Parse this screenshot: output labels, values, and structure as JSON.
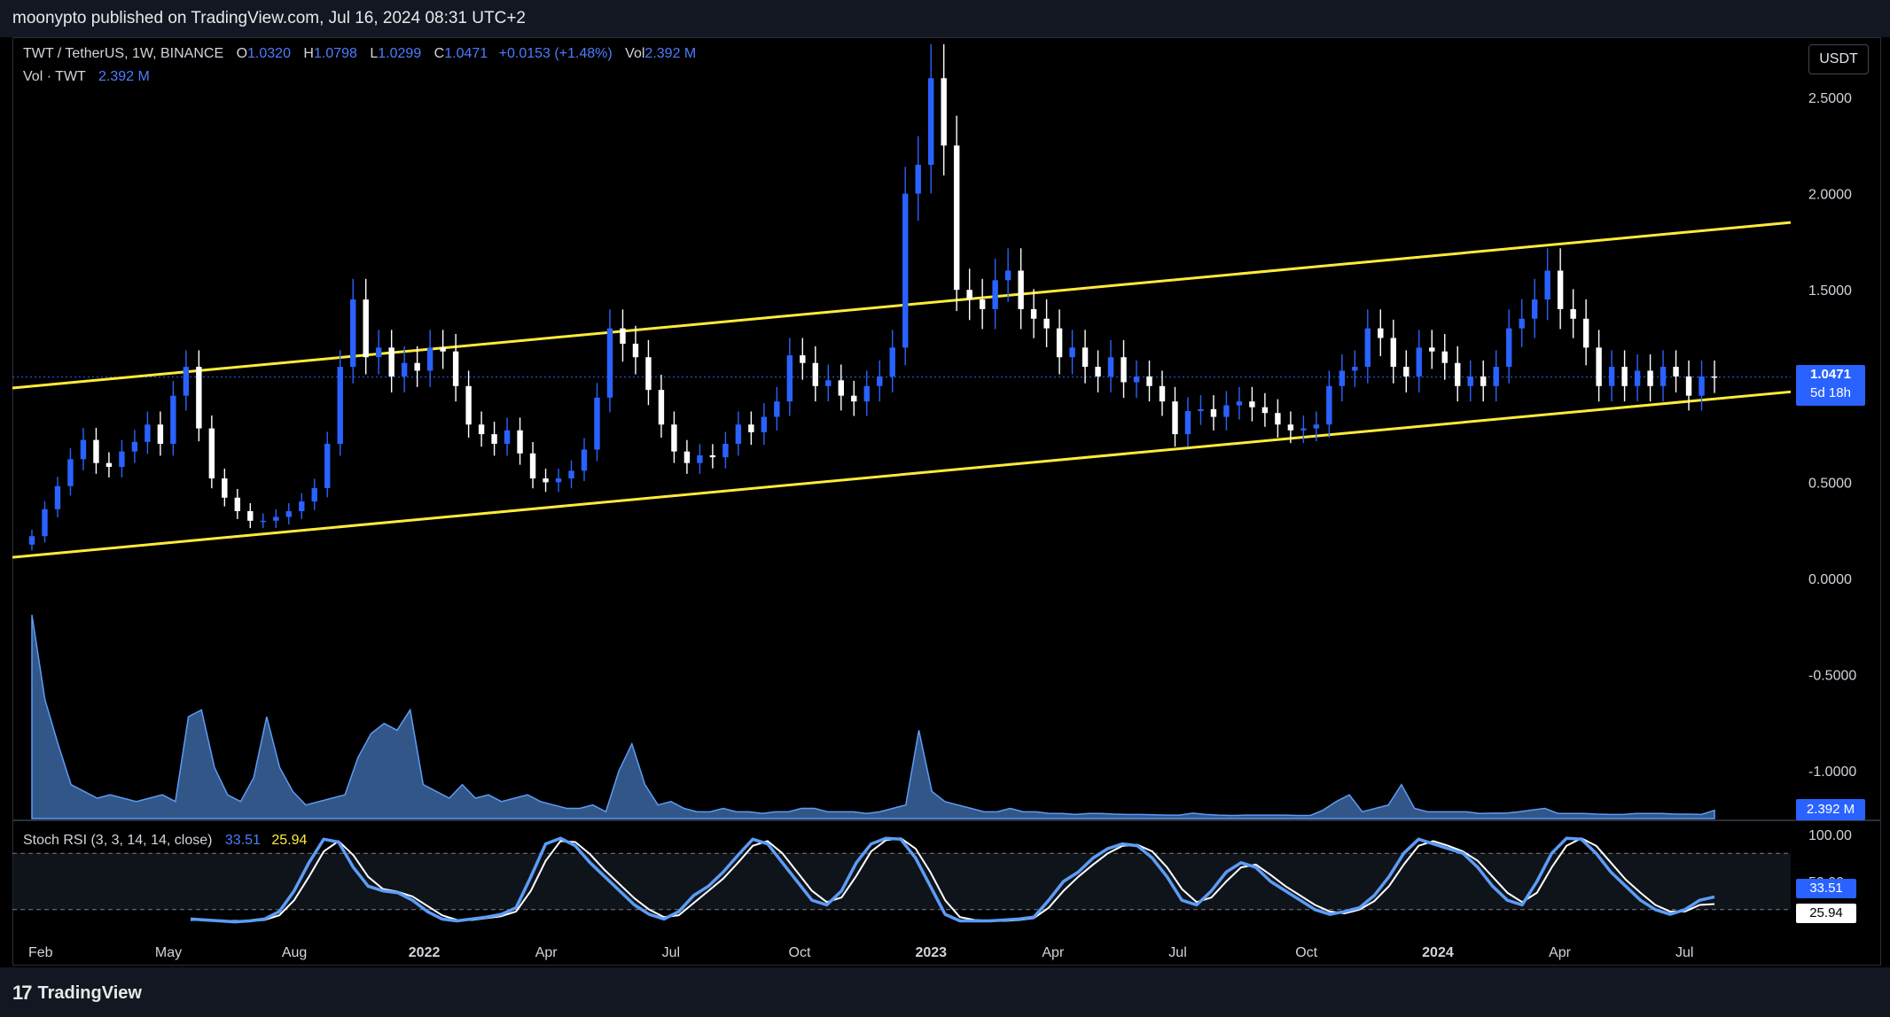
{
  "publisher": "moonypto published on TradingView.com, Jul 16, 2024 08:31 UTC+2",
  "brand": "TradingView",
  "legend": {
    "symbol": "TWT / TetherUS, 1W, BINANCE",
    "o_label": "O",
    "o_value": "1.0320",
    "h_label": "H",
    "h_value": "1.0798",
    "l_label": "L",
    "l_value": "1.0299",
    "c_label": "C",
    "c_value": "1.0471",
    "change": "+0.0153 (+1.48%)",
    "vol_label": "Vol",
    "vol_value": "2.392 M",
    "vol_series_label": "Vol · TWT",
    "vol_series_value": "2.392 M",
    "stoch_label": "Stoch RSI (3, 3, 14, 14, close)",
    "stoch_k": "33.51",
    "stoch_d": "25.94"
  },
  "currency_button": "USDT",
  "price_tag": {
    "value": "1.0471",
    "countdown": "5d 18h"
  },
  "volume_tag": "2.392 M",
  "stoch_tags": {
    "k": "33.51",
    "d": "25.94"
  },
  "colors": {
    "up": "#2962ff",
    "down": "#ffffff",
    "channel": "#ffeb3b",
    "volume": "#5b9cf6",
    "stoch_k": "#5b9cf6",
    "stoch_d": "#ffffff",
    "background": "#000000"
  },
  "chart_data": {
    "type": "candlestick",
    "timeframe": "1W",
    "x_ticks": [
      "Feb",
      "May",
      "Aug",
      "2022",
      "Apr",
      "Jul",
      "Oct",
      "2023",
      "Apr",
      "Jul",
      "Oct",
      "2024",
      "Apr",
      "Jul"
    ],
    "price_axis": {
      "ticks": [
        "2.5000",
        "2.0000",
        "1.5000",
        "1.0000",
        "0.5000",
        "0.0000",
        "-0.5000",
        "-1.0000"
      ],
      "ylim": [
        -1.2,
        2.75
      ]
    },
    "stoch_axis": {
      "ticks": [
        "100.00",
        "50.00"
      ],
      "bands": [
        80,
        20
      ]
    },
    "closes": [
      0.22,
      0.36,
      0.48,
      0.62,
      0.72,
      0.6,
      0.58,
      0.66,
      0.71,
      0.8,
      0.7,
      0.95,
      1.1,
      0.78,
      0.52,
      0.42,
      0.35,
      0.3,
      0.3,
      0.32,
      0.35,
      0.4,
      0.47,
      0.7,
      1.1,
      1.45,
      1.15,
      1.2,
      1.05,
      1.12,
      1.08,
      1.2,
      1.18,
      1.0,
      0.8,
      0.75,
      0.7,
      0.77,
      0.65,
      0.52,
      0.5,
      0.52,
      0.56,
      0.67,
      0.94,
      1.3,
      1.22,
      1.15,
      0.98,
      0.8,
      0.66,
      0.6,
      0.64,
      0.63,
      0.7,
      0.8,
      0.76,
      0.84,
      0.92,
      1.16,
      1.12,
      1.0,
      1.03,
      0.95,
      0.92,
      1.0,
      1.05,
      1.2,
      2.0,
      2.15,
      2.6,
      2.25,
      1.5,
      1.45,
      1.4,
      1.55,
      1.6,
      1.4,
      1.35,
      1.3,
      1.15,
      1.2,
      1.1,
      1.05,
      1.15,
      1.02,
      1.05,
      1.0,
      0.92,
      0.75,
      0.87,
      0.88,
      0.84,
      0.9,
      0.92,
      0.89,
      0.86,
      0.8,
      0.77,
      0.78,
      0.8,
      1.0,
      1.08,
      1.1,
      1.3,
      1.25,
      1.1,
      1.05,
      1.2,
      1.18,
      1.12,
      1.0,
      1.05,
      1.0,
      1.1,
      1.3,
      1.35,
      1.45,
      1.6,
      1.4,
      1.35,
      1.2,
      1.0,
      1.1,
      1.0,
      1.08,
      1.0,
      1.1,
      1.05,
      0.95,
      1.05,
      1.047
    ],
    "volume_m": [
      60,
      35,
      22,
      10,
      8,
      6,
      7,
      6,
      5,
      6,
      7,
      5,
      30,
      32,
      15,
      7,
      5,
      12,
      30,
      15,
      8,
      4,
      5,
      6,
      7,
      18,
      25,
      28,
      26,
      32,
      10,
      8,
      6,
      10,
      6,
      7,
      5,
      6,
      7,
      5,
      4,
      3,
      3,
      4,
      2,
      14,
      22,
      10,
      4,
      5,
      3,
      2,
      2,
      3,
      2,
      2,
      1.5,
      2,
      2,
      3,
      3,
      2,
      2,
      2,
      1.5,
      2,
      3,
      4,
      26,
      8,
      5,
      4,
      3,
      2,
      2,
      3,
      2,
      2,
      1.5,
      1.5,
      1.2,
      1.5,
      1.5,
      1.3,
      1.2,
      1.2,
      1.1,
      1.0,
      1.0,
      1.6,
      1.2,
      1.0,
      0.9,
      1.0,
      1.0,
      1.0,
      1.0,
      0.9,
      0.9,
      2.5,
      5,
      7,
      2,
      3,
      4,
      10,
      3,
      2,
      2,
      2,
      2,
      1.5,
      1.6,
      1.6,
      2,
      2.5,
      3,
      1.5,
      1.5,
      1.5,
      1.3,
      1.2,
      1.2,
      1.5,
      1.5,
      1.5,
      1.3,
      1.3,
      1.2,
      2.392
    ],
    "stoch_k": [
      10,
      9,
      8,
      7,
      8,
      10,
      18,
      40,
      70,
      95,
      92,
      65,
      45,
      40,
      38,
      30,
      18,
      10,
      8,
      10,
      12,
      15,
      22,
      55,
      90,
      96,
      88,
      70,
      55,
      40,
      25,
      15,
      10,
      18,
      35,
      45,
      60,
      78,
      95,
      90,
      70,
      50,
      30,
      25,
      40,
      70,
      90,
      96,
      95,
      75,
      45,
      15,
      8,
      8,
      8,
      9,
      10,
      12,
      30,
      50,
      60,
      75,
      85,
      90,
      88,
      75,
      55,
      30,
      25,
      40,
      60,
      70,
      65,
      50,
      40,
      30,
      20,
      15,
      18,
      22,
      35,
      55,
      80,
      95,
      90,
      85,
      80,
      65,
      45,
      30,
      25,
      50,
      80,
      96,
      95,
      80,
      60,
      45,
      30,
      20,
      15,
      20,
      30,
      33.51
    ],
    "stoch_d": [
      9,
      9,
      8,
      8,
      8,
      9,
      14,
      30,
      55,
      82,
      93,
      78,
      55,
      42,
      39,
      34,
      24,
      14,
      9,
      9,
      11,
      13,
      18,
      40,
      72,
      93,
      92,
      79,
      62,
      47,
      32,
      20,
      12,
      14,
      27,
      40,
      53,
      70,
      88,
      93,
      80,
      60,
      40,
      28,
      33,
      56,
      82,
      94,
      96,
      85,
      60,
      30,
      12,
      9,
      8,
      8,
      9,
      11,
      22,
      40,
      55,
      68,
      80,
      88,
      89,
      82,
      65,
      42,
      28,
      33,
      50,
      65,
      68,
      57,
      45,
      35,
      25,
      18,
      16,
      20,
      29,
      45,
      68,
      88,
      93,
      88,
      82,
      72,
      55,
      38,
      28,
      38,
      65,
      88,
      96,
      88,
      70,
      52,
      38,
      25,
      18,
      18,
      25,
      25.94
    ],
    "channel": {
      "upper": {
        "start": 0.99,
        "end": 1.85
      },
      "lower": {
        "start": 0.11,
        "end": 0.97
      }
    }
  }
}
